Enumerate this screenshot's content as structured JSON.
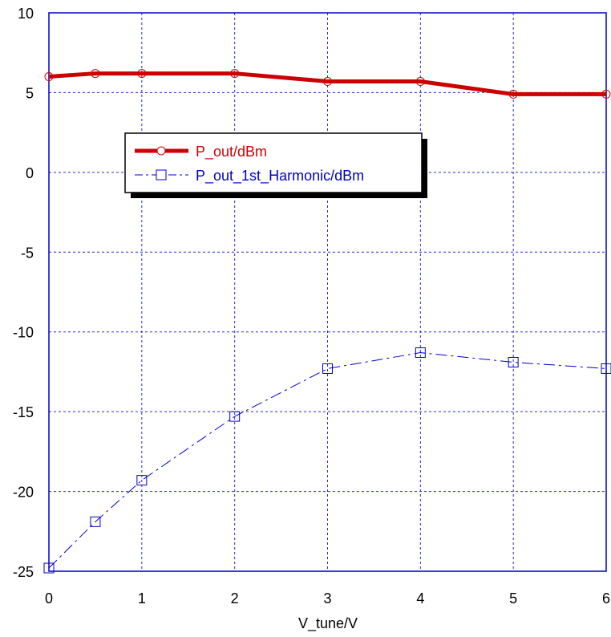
{
  "chart_data": {
    "type": "line",
    "title": "",
    "xlabel": "V_tune/V",
    "ylabel": "",
    "xlim": [
      0,
      6
    ],
    "ylim": [
      -25,
      10
    ],
    "xticks": [
      "0",
      "1",
      "2",
      "3",
      "4",
      "5",
      "6"
    ],
    "yticks": [
      "-25",
      "-20",
      "-15",
      "-10",
      "-5",
      "0",
      "5",
      "10"
    ],
    "x_tick_values": [
      0,
      1,
      2,
      3,
      4,
      5,
      6
    ],
    "y_tick_values": [
      -25,
      -20,
      -15,
      -10,
      -5,
      0,
      5,
      10
    ],
    "grid": true,
    "legend_position": "upper-left",
    "series": [
      {
        "name": "P_out/dBm",
        "color": "#cc0000",
        "marker": "circle",
        "line_style": "solid",
        "x": [
          0,
          0.5,
          1,
          2,
          3,
          4,
          5,
          6
        ],
        "y": [
          6.0,
          6.2,
          6.2,
          6.2,
          5.7,
          5.7,
          4.9,
          4.9
        ]
      },
      {
        "name": "P_out_1st_Harmonic/dBm",
        "color": "#0000cc",
        "marker": "square",
        "line_style": "dash-dot",
        "x": [
          0,
          0.5,
          1,
          2,
          3,
          4,
          5,
          6
        ],
        "y": [
          -24.8,
          -21.9,
          -19.3,
          -15.3,
          -12.3,
          -11.3,
          -11.9,
          -12.3
        ]
      }
    ]
  }
}
